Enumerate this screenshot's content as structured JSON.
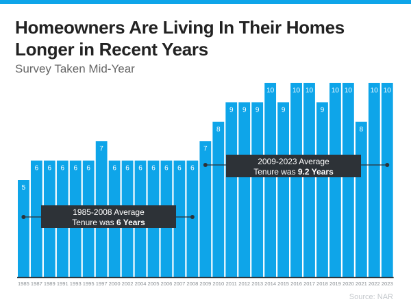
{
  "title_line1": "Homeowners Are Living In Their Homes",
  "title_line2": "Longer in Recent Years",
  "subtitle": "Survey Taken Mid-Year",
  "source": "Source: NAR",
  "colors": {
    "bar": "#0ea5e9",
    "annotation_box": "#2d3237",
    "annotation_line": "#2d3237",
    "label": "#ffffff"
  },
  "chart_data": {
    "type": "bar",
    "title": "Homeowners Are Living In Their Homes Longer in Recent Years",
    "subtitle": "Survey Taken Mid-Year",
    "categories": [
      "1985",
      "1987",
      "1989",
      "1991",
      "1993",
      "1995",
      "1997",
      "2000",
      "2002",
      "2004",
      "2005",
      "2006",
      "2007",
      "2008",
      "2009",
      "2010",
      "2011",
      "2012",
      "2013",
      "2014",
      "2015",
      "2016",
      "2017",
      "2018",
      "2019",
      "2020",
      "2021",
      "2022",
      "2023"
    ],
    "values": [
      5,
      6,
      6,
      6,
      6,
      6,
      7,
      6,
      6,
      6,
      6,
      6,
      6,
      6,
      7,
      8,
      9,
      9,
      9,
      10,
      9,
      10,
      10,
      9,
      10,
      10,
      8,
      10,
      10
    ],
    "ylim": [
      0,
      10
    ],
    "grid": false,
    "data_labels": true,
    "annotations": [
      {
        "line1": "1985-2008 Average",
        "line2_prefix": "Tenure was ",
        "line2_bold": "6 Years",
        "from": "1985",
        "to": "2008",
        "value": 6
      },
      {
        "line1": "2009-2023 Average",
        "line2_prefix": "Tenure was ",
        "line2_bold": "9.2 Years",
        "from": "2009",
        "to": "2023",
        "value": 9.2
      }
    ]
  }
}
